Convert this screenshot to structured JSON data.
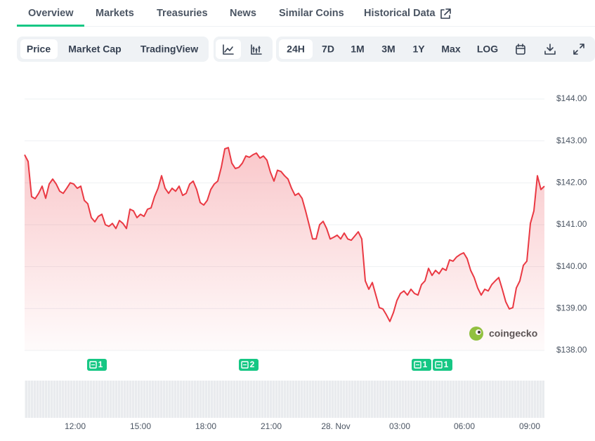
{
  "tabs": [
    "Overview",
    "Markets",
    "Treasuries",
    "News",
    "Similar Coins",
    "Historical Data"
  ],
  "toolbar": {
    "views": [
      "Price",
      "Market Cap",
      "TradingView"
    ],
    "ranges": [
      "24H",
      "7D",
      "1M",
      "3M",
      "1Y",
      "Max",
      "LOG"
    ]
  },
  "chart_data": {
    "type": "line",
    "series": [
      {
        "color": "#ea3943",
        "values": [
          142.67,
          142.51,
          141.67,
          141.62,
          141.75,
          141.92,
          141.63,
          141.97,
          142.09,
          141.97,
          141.8,
          141.75,
          141.87,
          142.0,
          141.97,
          141.87,
          141.92,
          141.58,
          141.5,
          141.17,
          141.07,
          141.2,
          141.25,
          141.0,
          140.96,
          141.03,
          140.91,
          141.1,
          141.03,
          140.91,
          141.37,
          141.33,
          141.17,
          141.25,
          141.2,
          141.37,
          141.4,
          141.67,
          141.87,
          142.17,
          141.87,
          141.75,
          141.87,
          141.8,
          141.92,
          141.7,
          141.75,
          141.97,
          142.04,
          141.84,
          141.53,
          141.47,
          141.58,
          141.84,
          141.97,
          142.04,
          142.37,
          142.81,
          142.84,
          142.47,
          142.34,
          142.37,
          142.47,
          142.64,
          142.61,
          142.67,
          142.71,
          142.59,
          142.64,
          142.54,
          142.25,
          142.04,
          142.3,
          142.27,
          142.17,
          142.09,
          141.87,
          141.7,
          141.75,
          141.63,
          141.33,
          141.0,
          140.66,
          140.66,
          141.0,
          141.08,
          140.91,
          140.66,
          140.7,
          140.75,
          140.66,
          140.8,
          140.66,
          140.63,
          140.73,
          140.83,
          140.66,
          139.66,
          139.46,
          139.62,
          139.32,
          139.02,
          138.99,
          138.85,
          138.69,
          138.9,
          139.19,
          139.36,
          139.42,
          139.32,
          139.46,
          139.36,
          139.32,
          139.57,
          139.66,
          139.96,
          139.79,
          139.91,
          139.83,
          139.96,
          139.91,
          140.16,
          140.13,
          140.23,
          140.29,
          140.33,
          140.19,
          139.91,
          139.74,
          139.49,
          139.32,
          139.46,
          139.42,
          139.57,
          139.66,
          139.74,
          139.46,
          139.16,
          138.99,
          139.02,
          139.49,
          139.66,
          140.03,
          140.13,
          141.03,
          141.33,
          142.17,
          141.84,
          141.92
        ]
      }
    ],
    "x_labels": [
      "12:00",
      "15:00",
      "18:00",
      "21:00",
      "28. Nov",
      "03:00",
      "06:00",
      "09:00"
    ],
    "ylim": [
      138,
      144
    ],
    "yticks": [
      {
        "value": 144,
        "label": "$144.00"
      },
      {
        "value": 143,
        "label": "$143.00"
      },
      {
        "value": 142,
        "label": "$142.00"
      },
      {
        "value": 141,
        "label": "$141.00"
      },
      {
        "value": 140,
        "label": "$140.00"
      },
      {
        "value": 139,
        "label": "$139.00"
      },
      {
        "value": 138,
        "label": "$138.00"
      }
    ],
    "grid": true,
    "watermark": "coingecko",
    "news_markers": [
      "1",
      "2",
      "1",
      "1"
    ]
  }
}
